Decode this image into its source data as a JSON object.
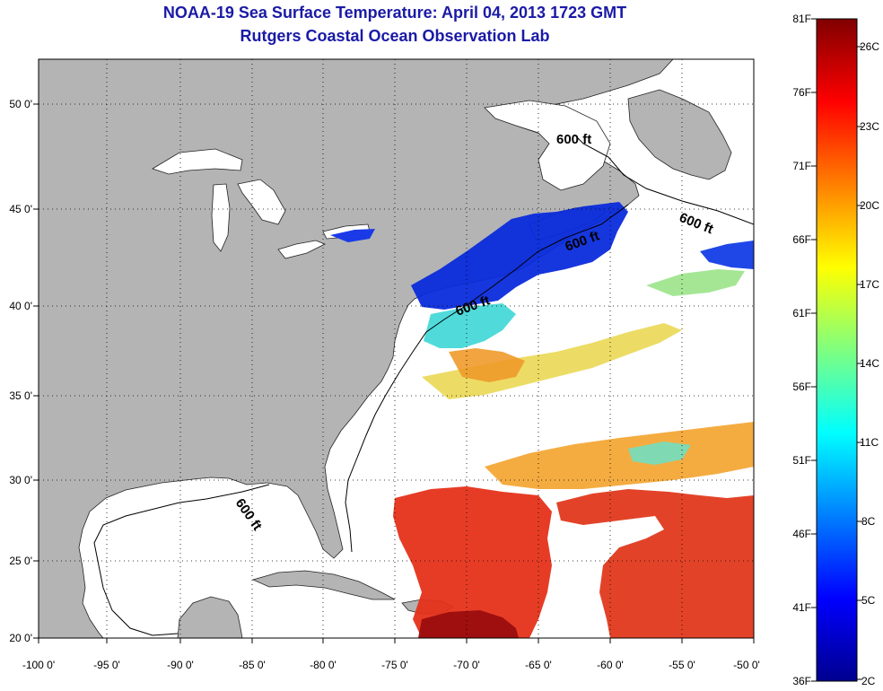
{
  "title": "NOAA-19 Sea Surface Temperature:  April 04, 2013 1723 GMT",
  "subtitle": "Rutgers Coastal Ocean Observation Lab",
  "map": {
    "lon_range": [
      -100,
      -50
    ],
    "lat_range": [
      20,
      52
    ],
    "lon_ticks": [
      "-100 0'",
      "-95 0'",
      "-90 0'",
      "-85 0'",
      "-80 0'",
      "-75 0'",
      "-70 0'",
      "-65 0'",
      "-60 0'",
      "-55 0'",
      "-50 0'"
    ],
    "lat_ticks": [
      "20 0'",
      "25 0'",
      "30 0'",
      "35 0'",
      "40 0'",
      "45 0'",
      "50 0'"
    ],
    "land_color": "#b4b4b4",
    "ocean_color": "#ffffff",
    "grid": "dotted",
    "contour_labels": [
      "600 ft",
      "600 ft",
      "600 ft",
      "600 ft",
      "600 ft"
    ]
  },
  "colorbar": {
    "fahrenheit_labels": [
      "81F",
      "76F",
      "71F",
      "66F",
      "61F",
      "56F",
      "51F",
      "46F",
      "41F",
      "36F"
    ],
    "celsius_labels": [
      "26C",
      "23C",
      "20C",
      "17C",
      "14C",
      "11C",
      "8C",
      "5C",
      "2C"
    ],
    "range_f": [
      36,
      81
    ],
    "range_c": [
      2,
      27
    ],
    "colormap": "jet"
  }
}
